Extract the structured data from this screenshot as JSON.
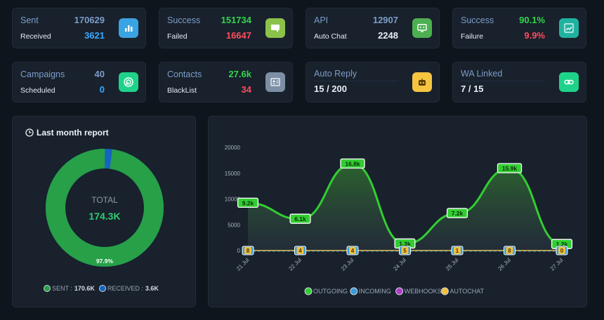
{
  "stats": [
    {
      "label1": "Sent",
      "value1": "170629",
      "label2": "Received",
      "value2": "3621",
      "icon": "bar-chart-icon",
      "color": "#3aa3e3"
    },
    {
      "label1": "Success",
      "value1": "151734",
      "label2": "Failed",
      "value2": "16647",
      "icon": "message-icon",
      "color": "#8bc34a"
    },
    {
      "label1": "API",
      "value1": "12907",
      "label2": "Auto Chat",
      "value2": "2248",
      "icon": "monitor-icon",
      "color": "#4caf50"
    },
    {
      "label1": "Success",
      "value1": "90.1%",
      "label2": "Failure",
      "value2": "9.9%",
      "icon": "trend-icon",
      "color": "#20b2a0"
    },
    {
      "label1": "Campaigns",
      "value1": "40",
      "label2": "Scheduled",
      "value2": "0",
      "icon": "target-icon",
      "color": "#1fd28a"
    },
    {
      "label1": "Contacts",
      "value1": "27.6k",
      "label2": "BlackList",
      "value2": "34",
      "icon": "contact-card-icon",
      "color": "#7d8fa5"
    },
    {
      "label1": "Auto Reply",
      "value": "15 / 200",
      "icon": "robot-icon",
      "color": "#f5c542"
    },
    {
      "label1": "WA Linked",
      "value": "7 / 15",
      "icon": "link-icon",
      "color": "#1fd28a"
    }
  ],
  "report": {
    "title": "Last month report",
    "total_label": "TOTAL",
    "total_value": "174.3K",
    "pct_label": "97.9%",
    "sent_pct": 0.979,
    "legend": [
      {
        "label": "SENT :",
        "value": "170.6K",
        "color": "#27a048"
      },
      {
        "label": "RECEIVED :",
        "value": "3.6K",
        "color": "#1565c0"
      }
    ]
  },
  "chart_data": {
    "type": "area",
    "categories": [
      "21 Jul",
      "22 Jul",
      "23 Jul",
      "24 Jul",
      "25 Jul",
      "26 Jul",
      "27 Jul"
    ],
    "ylim": [
      0,
      20000
    ],
    "yticks": [
      "0",
      "5000",
      "10000",
      "15000",
      "20000"
    ],
    "series": [
      {
        "name": "OUTGOING",
        "values": [
          9200,
          6100,
          16800,
          1300,
          7200,
          15900,
          1200
        ],
        "labels": [
          "9.2k",
          "6.1k",
          "16.8k",
          "1.3k",
          "7.2k",
          "15.9k",
          "1.2k"
        ],
        "color": "#32cd32"
      },
      {
        "name": "INCOMING",
        "values": [
          8,
          4,
          4,
          5,
          1,
          8,
          0
        ],
        "labels": [
          "8",
          "4",
          "4",
          "5",
          "1",
          "8",
          "0"
        ],
        "color": "#3a9bd9"
      },
      {
        "name": "WEBHOOKS",
        "values": [
          0,
          0,
          0,
          0,
          0,
          0,
          0
        ],
        "labels": [],
        "color": "#b03cc8"
      },
      {
        "name": "AUTOCHAT",
        "values": [
          8,
          4,
          4,
          5,
          1,
          8,
          0
        ],
        "labels": [
          "8",
          "4",
          "4",
          "5",
          "1",
          "8",
          "0"
        ],
        "color": "#f0c040"
      }
    ]
  }
}
